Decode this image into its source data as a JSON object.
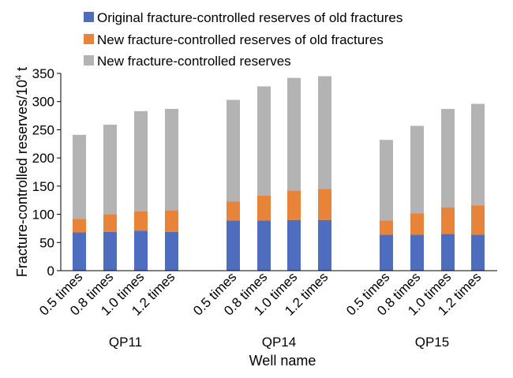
{
  "chart_data": {
    "type": "bar",
    "stacked": true,
    "title": "",
    "xlabel": "Well name",
    "ylabel_main": "Fracture-controlled reserves/10",
    "ylabel_sup": "4",
    "ylabel_unit": " t",
    "ylim": [
      0,
      350
    ],
    "yticks": [
      0,
      50,
      100,
      150,
      200,
      250,
      300,
      350
    ],
    "grid": false,
    "legend_position": "top",
    "groups": [
      {
        "name": "QP11",
        "categories": [
          "0.5 times",
          "0.8 times",
          "1.0 times",
          "1.2 times"
        ]
      },
      {
        "name": "QP14",
        "categories": [
          "0.5 times",
          "0.8 times",
          "1.0 times",
          "1.2 times"
        ]
      },
      {
        "name": "QP15",
        "categories": [
          "0.5 times",
          "0.8 times",
          "1.0 times",
          "1.2 times"
        ]
      }
    ],
    "series": [
      {
        "name": "Original fracture-controlled reserves of old fractures",
        "color": "#4F6DBF",
        "values": [
          68,
          69,
          71,
          69,
          89,
          89,
          90,
          90,
          64,
          64,
          65,
          64
        ]
      },
      {
        "name": "New fracture-controlled reserves of old fractures",
        "color": "#E8833A",
        "values": [
          24,
          31,
          34,
          38,
          34,
          44,
          52,
          55,
          25,
          38,
          47,
          52
        ]
      },
      {
        "name": "New fracture-controlled reserves",
        "color": "#B3B3B3",
        "values": [
          149,
          159,
          178,
          180,
          180,
          194,
          200,
          200,
          143,
          155,
          175,
          180
        ]
      }
    ]
  }
}
